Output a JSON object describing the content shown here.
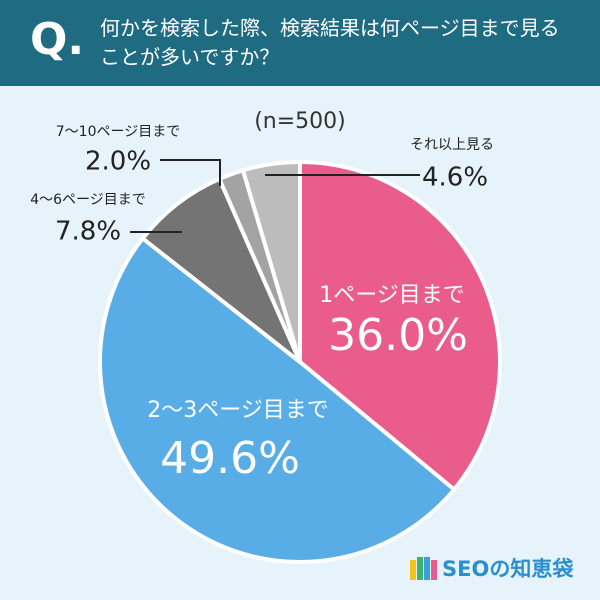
{
  "chart_data": {
    "type": "pie",
    "question_label": "Q.",
    "title": "何かを検索した際、検索結果は何ページ目まで見ることが多いですか？",
    "subtitle": "(n=500)",
    "categories": [
      "1ページ目まで",
      "2〜3ページ目まで",
      "4〜6ページ目まで",
      "7〜10ページ目まで",
      "それ以上見る"
    ],
    "values": [
      36.0,
      49.6,
      7.8,
      2.0,
      4.6
    ],
    "value_labels": [
      "36.0%",
      "49.6%",
      "7.8%",
      "2.0%",
      "4.6%"
    ],
    "colors": [
      "#e95c8c",
      "#58ade6",
      "#747474",
      "#a3a3a3",
      "#bcbcbc"
    ],
    "source": "SEOの知恵袋"
  }
}
